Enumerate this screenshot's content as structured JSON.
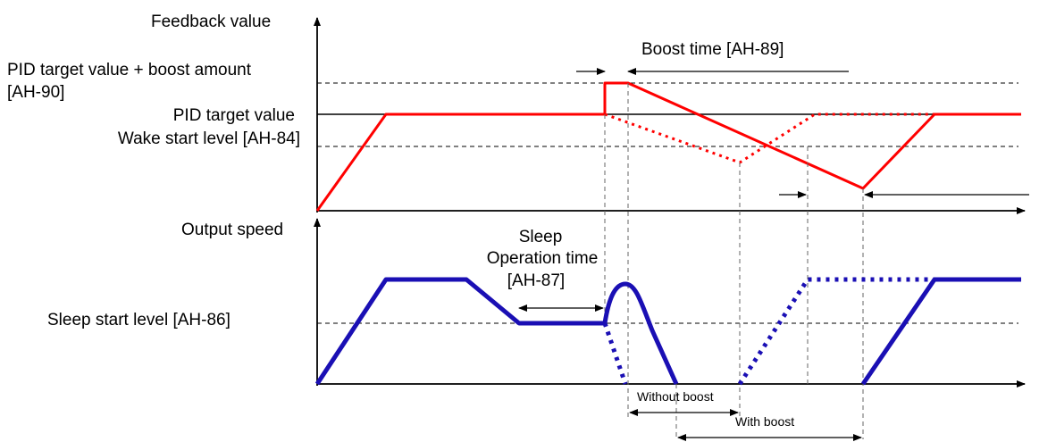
{
  "labels": {
    "feedback_axis": "Feedback value",
    "boost_target_line1": "PID target value + boost amount",
    "boost_target_line2": "[AH-90]",
    "pid_target": "PID target value",
    "wake_start": "Wake start level [AH-84]",
    "boost_time": "Boost time [AH-89]",
    "output_axis": "Output speed",
    "sleep_line1": "Sleep",
    "sleep_line2": "Operation time",
    "sleep_line3": "[AH-87]",
    "sleep_start": "Sleep start level [AH-86]",
    "without_boost": "Without boost",
    "with_boost": "With boost"
  },
  "colors": {
    "feedback_curve": "#ff0000",
    "output_curve": "#1a0fb4",
    "axes": "#000000"
  }
}
